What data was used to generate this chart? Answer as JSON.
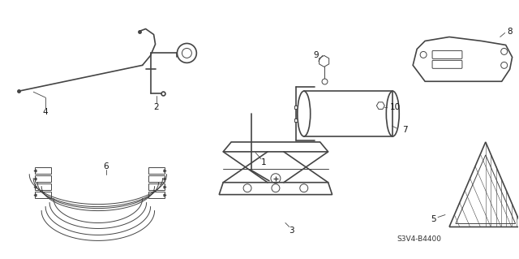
{
  "bg_color": "#ffffff",
  "line_color": "#444444",
  "fig_width": 6.4,
  "fig_height": 3.19,
  "dpi": 100,
  "diagram_code": "S3V4-B4400",
  "label_fontsize": 7.5
}
